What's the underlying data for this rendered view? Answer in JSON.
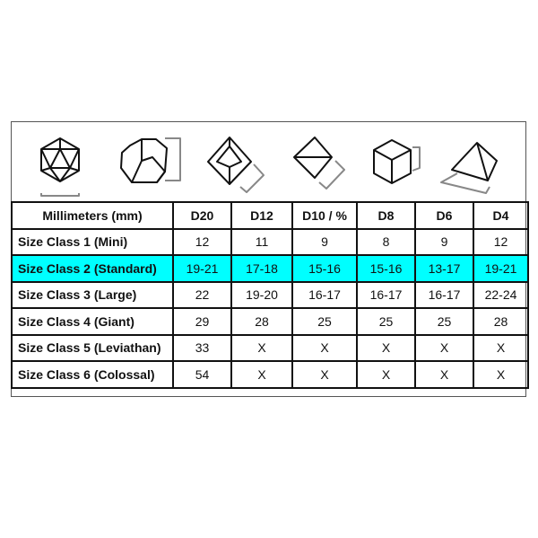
{
  "highlight_color": "#00ffff",
  "icons": [
    "d20-icosahedron-icon",
    "d12-dodecahedron-icon",
    "d10-icon",
    "d8-octahedron-icon",
    "d6-cube-icon",
    "d4-tetrahedron-icon"
  ],
  "table": {
    "headers": [
      "Millimeters (mm)",
      "D20",
      "D12",
      "D10 / %",
      "D8",
      "D6",
      "D4"
    ],
    "rows": [
      {
        "label": "Size Class 1 (Mini)",
        "values": [
          "12",
          "11",
          "9",
          "8",
          "9",
          "12"
        ]
      },
      {
        "label": "Size Class 2 (Standard)",
        "values": [
          "19-21",
          "17-18",
          "15-16",
          "15-16",
          "13-17",
          "19-21"
        ],
        "highlighted": true
      },
      {
        "label": "Size Class 3 (Large)",
        "values": [
          "22",
          "19-20",
          "16-17",
          "16-17",
          "16-17",
          "22-24"
        ]
      },
      {
        "label": "Size Class 4 (Giant)",
        "values": [
          "29",
          "28",
          "25",
          "25",
          "25",
          "28"
        ]
      },
      {
        "label": "Size Class 5 (Leviathan)",
        "values": [
          "33",
          "X",
          "X",
          "X",
          "X",
          "X"
        ]
      },
      {
        "label": "Size Class 6 (Colossal)",
        "values": [
          "54",
          "X",
          "X",
          "X",
          "X",
          "X"
        ]
      }
    ]
  }
}
